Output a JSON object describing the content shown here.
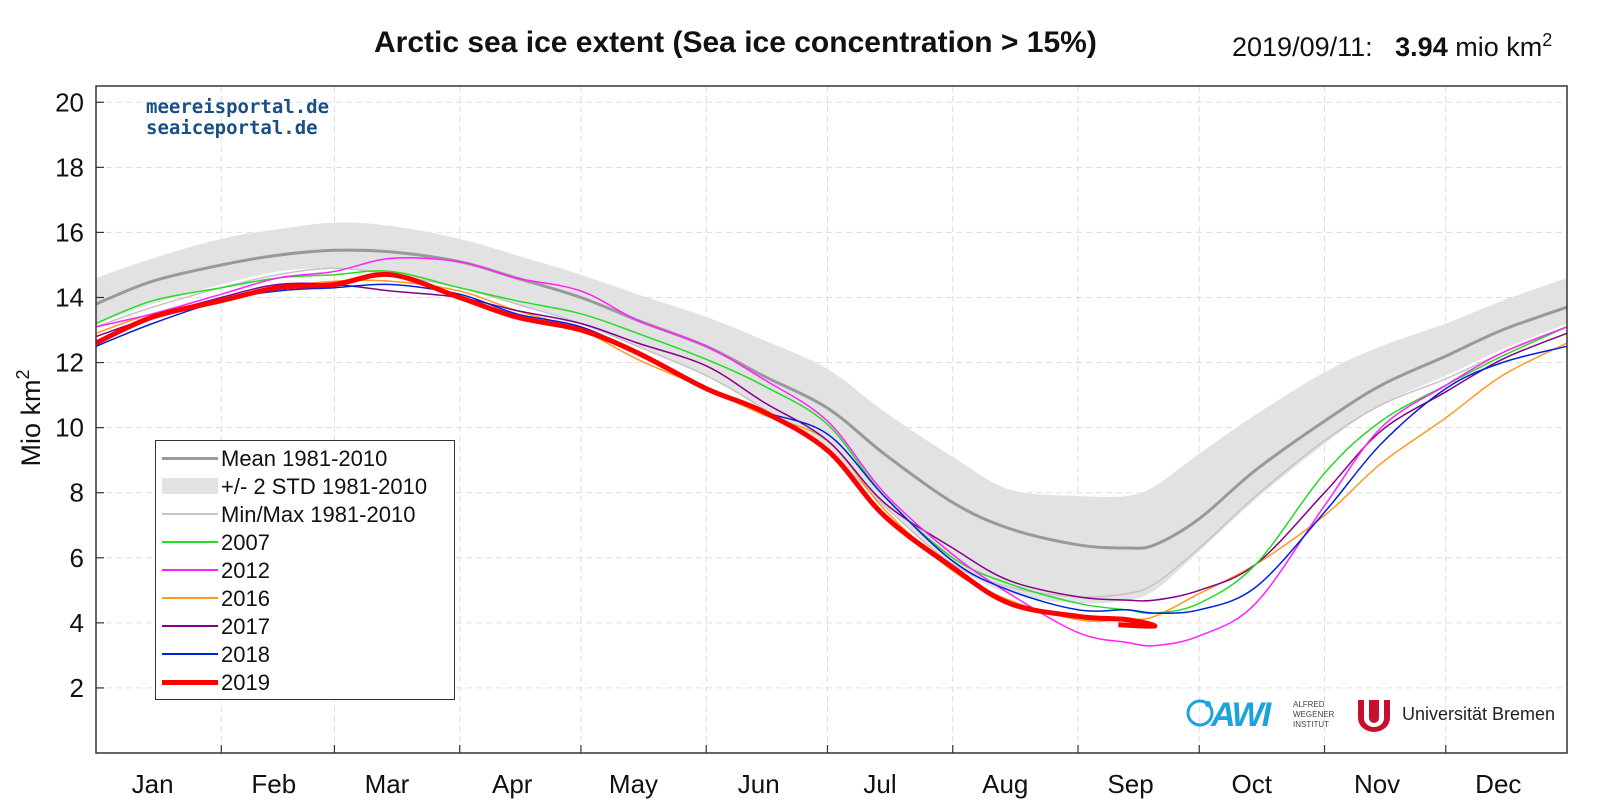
{
  "title": "Arctic sea ice extent (Sea ice concentration > 15%)",
  "readout": {
    "date": "2019/09/11:",
    "value": "3.94",
    "unit": "mio km",
    "unit_sup": "2"
  },
  "portal": {
    "line1": "meereisportal.de",
    "line2": "seaiceportal.de"
  },
  "logos": {
    "awi": "AWI",
    "awi_sub": "ALFRED WEGENER INSTITUT",
    "ub": "Universität Bremen"
  },
  "chart_data": {
    "type": "line",
    "ylabel": "Mio km",
    "ylabel_sup": "2",
    "ylim": [
      0,
      20.5
    ],
    "xlim": [
      1,
      365
    ],
    "yticks": [
      2,
      4,
      6,
      8,
      10,
      12,
      14,
      16,
      18,
      20
    ],
    "month_labels": [
      "Jan",
      "Feb",
      "Mar",
      "Apr",
      "May",
      "Jun",
      "Jul",
      "Aug",
      "Sep",
      "Oct",
      "Nov",
      "Dec"
    ],
    "month_label_days": [
      15,
      45,
      73,
      104,
      134,
      165,
      195,
      226,
      257,
      287,
      318,
      348
    ],
    "month_start_days": [
      32,
      60,
      91,
      121,
      152,
      182,
      213,
      244,
      274,
      305,
      335
    ],
    "grid": true,
    "legend_position": "lower-left",
    "legend": [
      "Mean 1981-2010",
      "+/- 2 STD 1981-2010",
      "Min/Max 1981-2010",
      "2007",
      "2012",
      "2016",
      "2017",
      "2018",
      "2019"
    ],
    "x": [
      1,
      15,
      32,
      46,
      60,
      74,
      91,
      105,
      121,
      135,
      152,
      166,
      182,
      196,
      213,
      227,
      244,
      256,
      263,
      274,
      288,
      305,
      319,
      335,
      349,
      365
    ],
    "band": {
      "name": "+/- 2 STD 1981-2010",
      "upper": [
        14.6,
        15.2,
        15.8,
        16.1,
        16.3,
        16.2,
        15.8,
        15.3,
        14.7,
        14.1,
        13.4,
        12.7,
        11.8,
        10.5,
        9.1,
        8.1,
        7.9,
        7.9,
        8.2,
        9.2,
        10.4,
        11.7,
        12.5,
        13.2,
        13.9,
        14.6
      ],
      "lower": [
        13.2,
        13.8,
        14.4,
        14.8,
        14.9,
        14.7,
        14.3,
        13.8,
        13.2,
        12.5,
        11.6,
        10.6,
        9.3,
        7.6,
        5.8,
        4.9,
        4.6,
        4.7,
        5.0,
        6.2,
        7.8,
        9.5,
        10.7,
        11.6,
        12.4,
        13.2
      ]
    },
    "series": [
      {
        "name": "Mean 1981-2010",
        "color": "#999999",
        "width": 3,
        "values": [
          13.8,
          14.5,
          15.0,
          15.3,
          15.45,
          15.4,
          15.1,
          14.6,
          14.0,
          13.3,
          12.5,
          11.6,
          10.6,
          9.2,
          7.7,
          6.9,
          6.4,
          6.3,
          6.4,
          7.2,
          8.7,
          10.2,
          11.3,
          12.2,
          13.0,
          13.7
        ]
      },
      {
        "name": "Min/Max 1981-2010",
        "color": "#c4c4c4",
        "width": 1.5,
        "values": [
          13.1,
          13.7,
          14.3,
          14.7,
          14.9,
          14.7,
          14.3,
          13.8,
          13.2,
          12.5,
          11.6,
          10.6,
          9.3,
          7.6,
          5.8,
          5.1,
          4.8,
          4.9,
          5.2,
          6.3,
          7.9,
          9.6,
          10.7,
          11.5,
          12.3,
          13.1
        ]
      },
      {
        "name": "2007",
        "color": "#22dd22",
        "width": 1.5,
        "values": [
          13.2,
          13.9,
          14.3,
          14.6,
          14.7,
          14.8,
          14.3,
          13.9,
          13.5,
          12.9,
          12.1,
          11.3,
          10.1,
          7.9,
          6.0,
          5.2,
          4.6,
          4.4,
          4.3,
          4.6,
          5.8,
          8.6,
          10.2,
          11.3,
          12.2,
          13.1
        ]
      },
      {
        "name": "2012",
        "color": "#ff22ff",
        "width": 1.5,
        "values": [
          13.1,
          13.5,
          14.1,
          14.6,
          14.8,
          15.2,
          15.1,
          14.6,
          14.2,
          13.3,
          12.5,
          11.5,
          10.2,
          8.0,
          6.1,
          4.9,
          3.7,
          3.4,
          3.3,
          3.6,
          4.6,
          7.6,
          10.0,
          11.3,
          12.3,
          13.1
        ]
      },
      {
        "name": "2016",
        "color": "#ff9922",
        "width": 1.5,
        "values": [
          12.9,
          13.5,
          13.9,
          14.3,
          14.5,
          14.5,
          14.2,
          13.6,
          13.0,
          12.1,
          11.2,
          10.4,
          9.6,
          7.5,
          5.6,
          4.7,
          4.1,
          4.1,
          4.2,
          4.9,
          5.8,
          7.3,
          8.9,
          10.3,
          11.6,
          12.6
        ]
      },
      {
        "name": "2017",
        "color": "#880088",
        "width": 1.5,
        "values": [
          12.8,
          13.4,
          14.0,
          14.4,
          14.4,
          14.2,
          14.0,
          13.6,
          13.2,
          12.6,
          11.9,
          10.8,
          9.6,
          7.7,
          6.3,
          5.3,
          4.8,
          4.7,
          4.7,
          5.0,
          5.8,
          8.0,
          9.9,
          11.1,
          12.1,
          12.9
        ]
      },
      {
        "name": "2018",
        "color": "#0022dd",
        "width": 1.5,
        "values": [
          12.5,
          13.2,
          13.9,
          14.2,
          14.3,
          14.4,
          14.1,
          13.5,
          13.1,
          12.3,
          11.2,
          10.5,
          9.8,
          7.9,
          5.9,
          5.0,
          4.4,
          4.4,
          4.3,
          4.4,
          5.1,
          7.4,
          9.5,
          11.2,
          12.0,
          12.5
        ]
      },
      {
        "name": "2019",
        "color": "#ff0000",
        "width": 5,
        "values": [
          12.6,
          13.4,
          13.9,
          14.3,
          14.4,
          14.7,
          14.0,
          13.4,
          13.0,
          12.3,
          11.2,
          10.5,
          9.3,
          7.3,
          5.7,
          4.6,
          4.2,
          4.1,
          3.9,
          null,
          null,
          null,
          null,
          null,
          null,
          null
        ],
        "end_day": 254,
        "end_value": 3.94
      }
    ]
  }
}
